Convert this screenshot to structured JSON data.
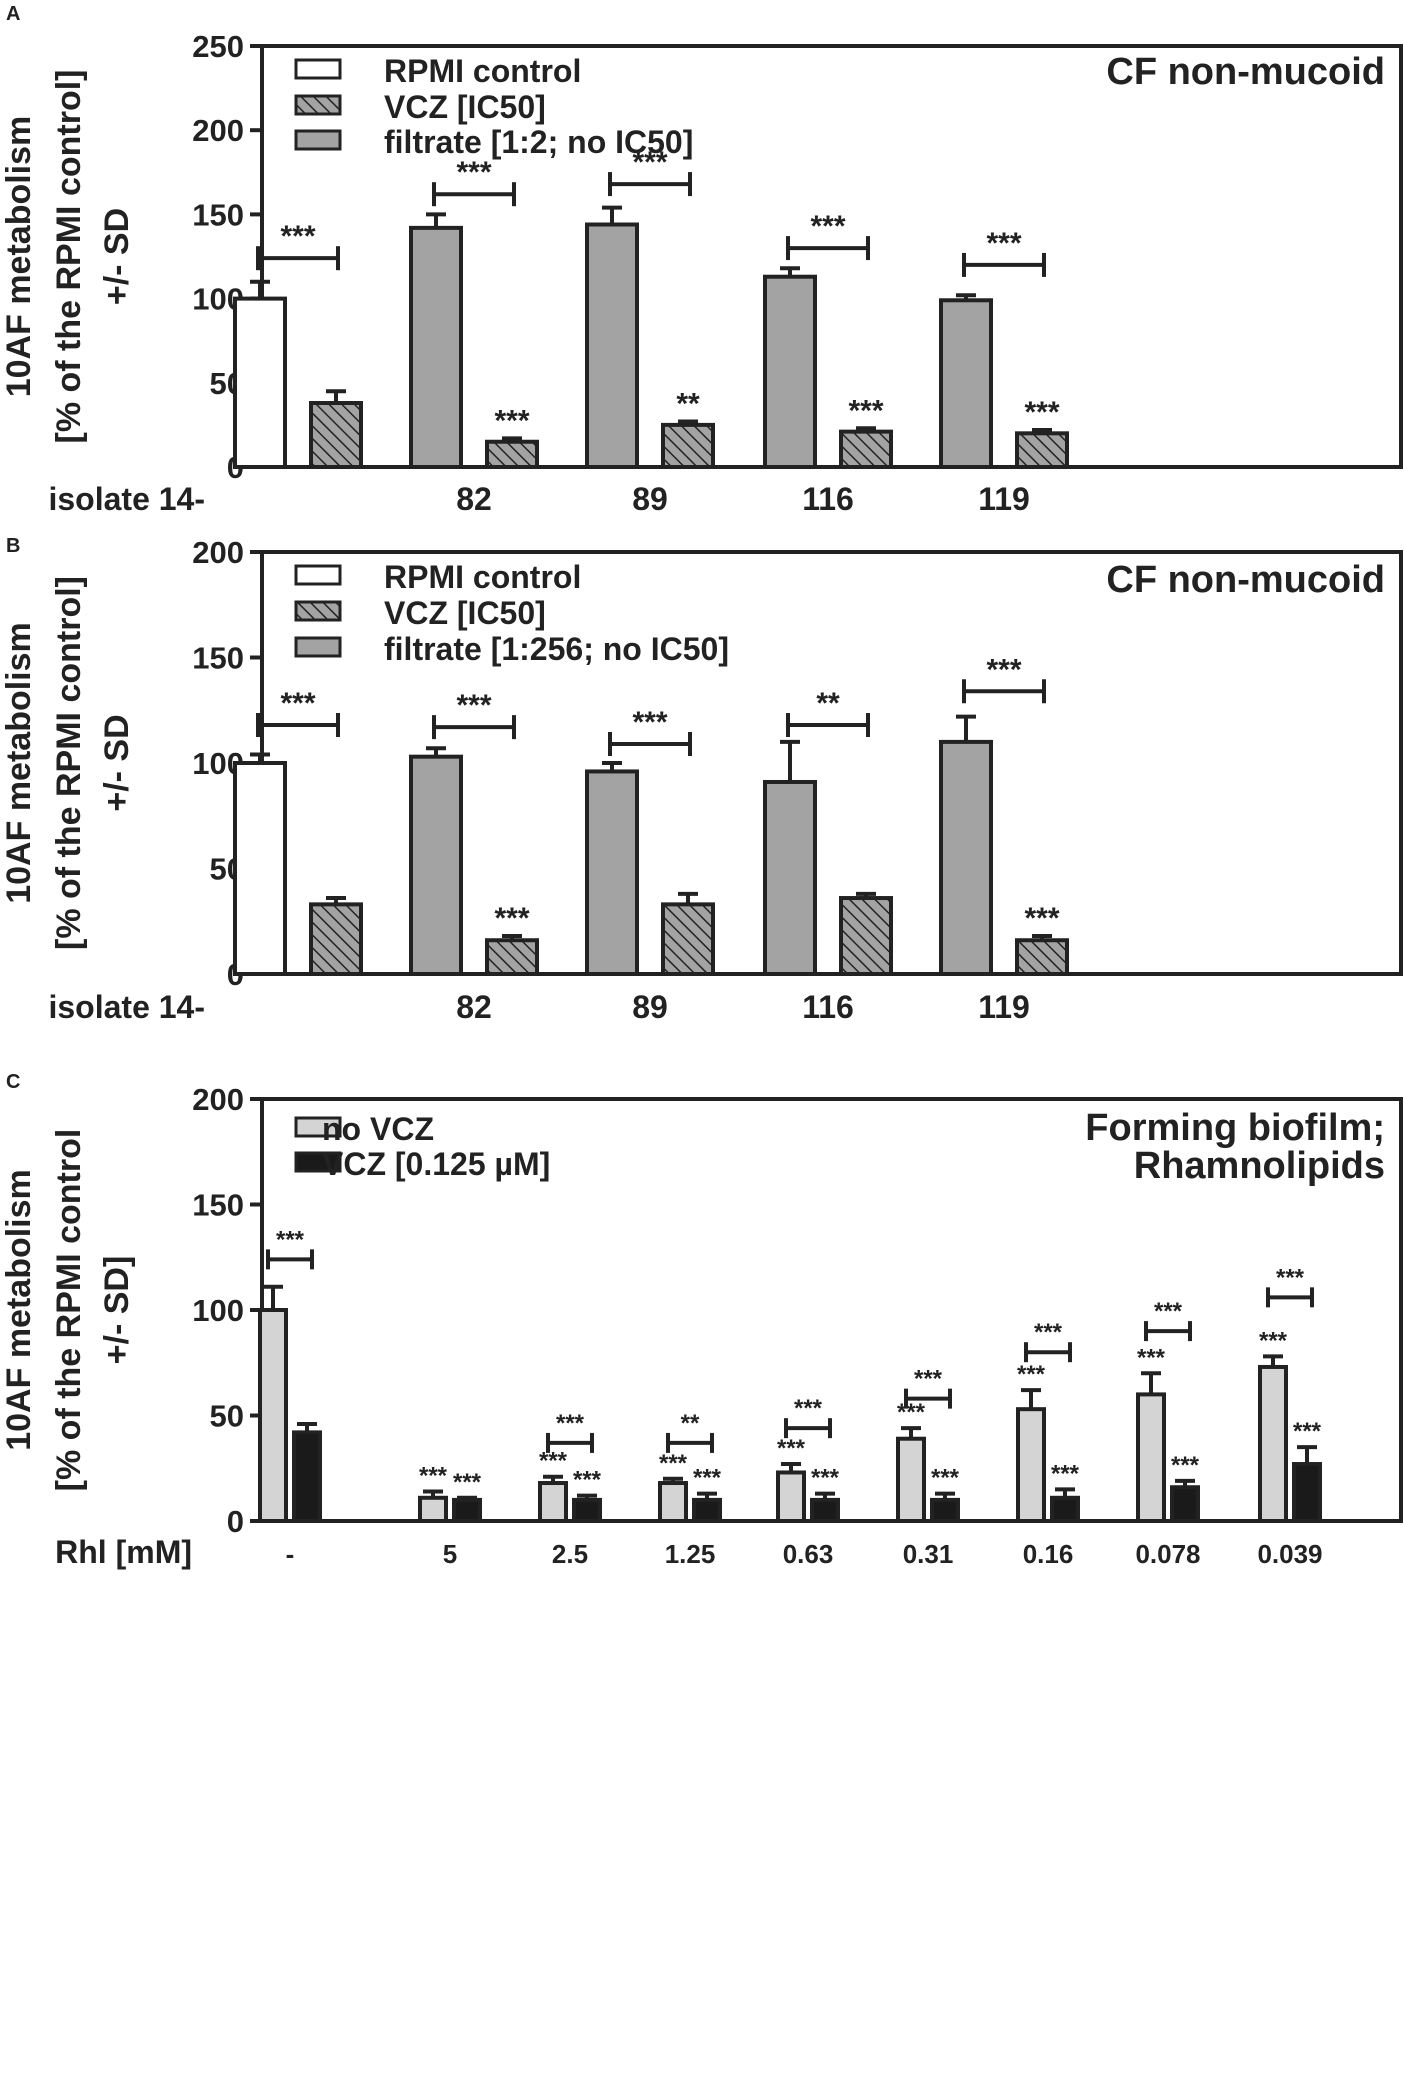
{
  "colors": {
    "outline": "#222222",
    "white_bar": "#ffffff",
    "gray_bar": "#a3a3a3",
    "hatch_bg": "#a3a3a3",
    "light_gray_bar": "#d4d4d4",
    "black_bar": "#1a1a1a"
  },
  "chart_data": [
    {
      "type": "bar",
      "panel_label": "A",
      "title": "CF non-mucoid",
      "ylabel": [
        "10AF metabolism",
        "[% of the RPMI control]",
        "+/- SD"
      ],
      "ylim": [
        0,
        250
      ],
      "yticks": [
        0,
        50,
        100,
        150,
        200,
        250
      ],
      "x_axis_label": "isolate 14-",
      "categories": [
        "",
        "82",
        "89",
        "116",
        "119"
      ],
      "legend": [
        {
          "label": "RPMI control",
          "style": "white"
        },
        {
          "label": "VCZ [IC50]",
          "style": "hatch"
        },
        {
          "label": "filtrate [1:2; no IC50]",
          "style": "gray"
        }
      ],
      "series": [
        {
          "name": "RPMI control / filtrate [1:2; no IC50]",
          "values": [
            100,
            142,
            144,
            113,
            99
          ],
          "errors": [
            10,
            8,
            10,
            5,
            3
          ],
          "styles": [
            "white",
            "gray",
            "gray",
            "gray",
            "gray"
          ]
        },
        {
          "name": "VCZ [IC50]",
          "values": [
            38,
            15,
            25,
            21,
            20
          ],
          "errors": [
            7,
            2,
            2,
            2,
            2
          ],
          "styles": [
            "hatch",
            "hatch",
            "hatch",
            "hatch",
            "hatch"
          ]
        }
      ],
      "bar_labels": [
        "",
        "***",
        "**",
        "***",
        "***"
      ],
      "brackets": [
        {
          "group": 0,
          "label": "***",
          "y": 124
        },
        {
          "group": 1,
          "label": "***",
          "y": 162
        },
        {
          "group": 2,
          "label": "***",
          "y": 168
        },
        {
          "group": 3,
          "label": "***",
          "y": 130
        },
        {
          "group": 4,
          "label": "***",
          "y": 120
        }
      ]
    },
    {
      "type": "bar",
      "panel_label": "B",
      "title": "CF non-mucoid",
      "ylabel": [
        "10AF metabolism",
        "[% of the RPMI control]",
        "+/- SD"
      ],
      "ylim": [
        0,
        200
      ],
      "yticks": [
        0,
        50,
        100,
        150,
        200
      ],
      "x_axis_label": "isolate 14-",
      "categories": [
        "",
        "82",
        "89",
        "116",
        "119"
      ],
      "legend": [
        {
          "label": "RPMI control",
          "style": "white"
        },
        {
          "label": "VCZ [IC50]",
          "style": "hatch"
        },
        {
          "label": "filtrate [1:256; no IC50]",
          "style": "gray"
        }
      ],
      "series": [
        {
          "name": "RPMI control / filtrate [1:256; no IC50]",
          "values": [
            100,
            103,
            96,
            91,
            110
          ],
          "errors": [
            4,
            4,
            4,
            19,
            12
          ],
          "styles": [
            "white",
            "gray",
            "gray",
            "gray",
            "gray"
          ]
        },
        {
          "name": "VCZ [IC50]",
          "values": [
            33,
            16,
            33,
            36,
            16
          ],
          "errors": [
            3,
            2,
            5,
            2,
            2
          ],
          "styles": [
            "hatch",
            "hatch",
            "hatch",
            "hatch",
            "hatch"
          ]
        }
      ],
      "bar_labels": [
        "",
        "***",
        "",
        "",
        "***"
      ],
      "brackets": [
        {
          "group": 0,
          "label": "***",
          "y": 118
        },
        {
          "group": 1,
          "label": "***",
          "y": 117
        },
        {
          "group": 2,
          "label": "***",
          "y": 109
        },
        {
          "group": 3,
          "label": "**",
          "y": 118
        },
        {
          "group": 4,
          "label": "***",
          "y": 134
        }
      ]
    },
    {
      "type": "bar",
      "panel_label": "C",
      "title": [
        "Forming biofilm;",
        "Rhamnolipids"
      ],
      "ylabel": [
        "10AF metabolism",
        "[% of the RPMI control",
        "+/- SD]"
      ],
      "ylim": [
        0,
        200
      ],
      "yticks": [
        0,
        50,
        100,
        150,
        200
      ],
      "x_axis_label": "Rhl [mM]",
      "categories": [
        "-",
        "5",
        "2.5",
        "1.25",
        "0.63",
        "0.31",
        "0.16",
        "0.078",
        "0.039"
      ],
      "legend": [
        {
          "label": "no VCZ",
          "style": "lightgray"
        },
        {
          "label": "VCZ [0.125 µM]",
          "style": "black"
        }
      ],
      "series": [
        {
          "name": "no VCZ",
          "values": [
            100,
            11,
            18,
            18,
            23,
            39,
            53,
            60,
            73
          ],
          "errors": [
            11,
            3,
            3,
            2,
            4,
            5,
            9,
            10,
            5
          ],
          "styles": [
            "lightgray",
            "lightgray",
            "lightgray",
            "lightgray",
            "lightgray",
            "lightgray",
            "lightgray",
            "lightgray",
            "lightgray"
          ],
          "labels": [
            "",
            "***",
            "***",
            "***",
            "***",
            "***",
            "***",
            "***",
            "***"
          ]
        },
        {
          "name": "VCZ [0.125 µM]",
          "values": [
            42,
            10,
            10,
            10,
            10,
            10,
            11,
            16,
            27
          ],
          "errors": [
            4,
            1,
            2,
            3,
            3,
            3,
            4,
            3,
            8
          ],
          "styles": [
            "black",
            "black",
            "black",
            "black",
            "black",
            "black",
            "black",
            "black",
            "black"
          ],
          "labels": [
            "",
            "***",
            "***",
            "***",
            "***",
            "***",
            "***",
            "***",
            "***"
          ]
        }
      ],
      "brackets": [
        {
          "group": 0,
          "label": "***",
          "y": 124
        },
        {
          "group": 2,
          "label": "***",
          "y": 37
        },
        {
          "group": 3,
          "label": "**",
          "y": 37
        },
        {
          "group": 4,
          "label": "***",
          "y": 44
        },
        {
          "group": 5,
          "label": "***",
          "y": 58
        },
        {
          "group": 6,
          "label": "***",
          "y": 80
        },
        {
          "group": 7,
          "label": "***",
          "y": 90
        },
        {
          "group": 8,
          "label": "***",
          "y": 106
        }
      ]
    }
  ]
}
